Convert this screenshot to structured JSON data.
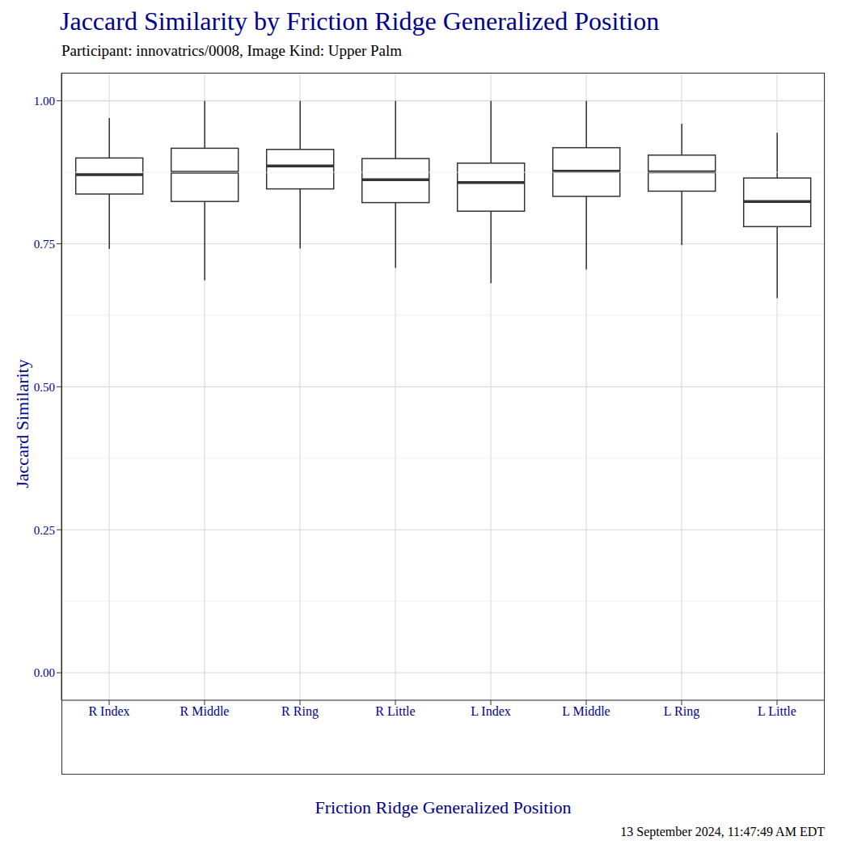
{
  "chart_data": {
    "type": "box",
    "title": "Jaccard Similarity by Friction Ridge Generalized Position",
    "subtitle": "Participant: innovatrics/0008, Image Kind: Upper Palm",
    "x_label": "Friction Ridge Generalized Position",
    "y_label": "Jaccard Similarity",
    "caption": "13 September 2024, 11:47:49 AM EDT",
    "categories": [
      "R Index",
      "R Middle",
      "R Ring",
      "R Little",
      "L Index",
      "L Middle",
      "L Ring",
      "L Little"
    ],
    "whisker_low": [
      0.741,
      0.686,
      0.742,
      0.708,
      0.681,
      0.705,
      0.748,
      0.655
    ],
    "q1": [
      0.837,
      0.824,
      0.846,
      0.822,
      0.807,
      0.833,
      0.842,
      0.78
    ],
    "median": [
      0.871,
      0.875,
      0.886,
      0.862,
      0.857,
      0.877,
      0.876,
      0.824
    ],
    "q3": [
      0.9,
      0.917,
      0.915,
      0.899,
      0.891,
      0.918,
      0.905,
      0.865
    ],
    "whisker_high": [
      0.97,
      1.0,
      1.0,
      1.0,
      1.0,
      1.0,
      0.96,
      0.944
    ],
    "color": "#333333",
    "ylim": [
      -0.048,
      1.049
    ],
    "yticks": [
      {
        "value": 0,
        "label": "0.00"
      },
      {
        "value": 0.25,
        "label": "0.25"
      },
      {
        "value": 0.5,
        "label": "0.50"
      },
      {
        "value": 0.75,
        "label": "0.75"
      },
      {
        "value": 1,
        "label": "1.00"
      }
    ],
    "grid": true
  }
}
